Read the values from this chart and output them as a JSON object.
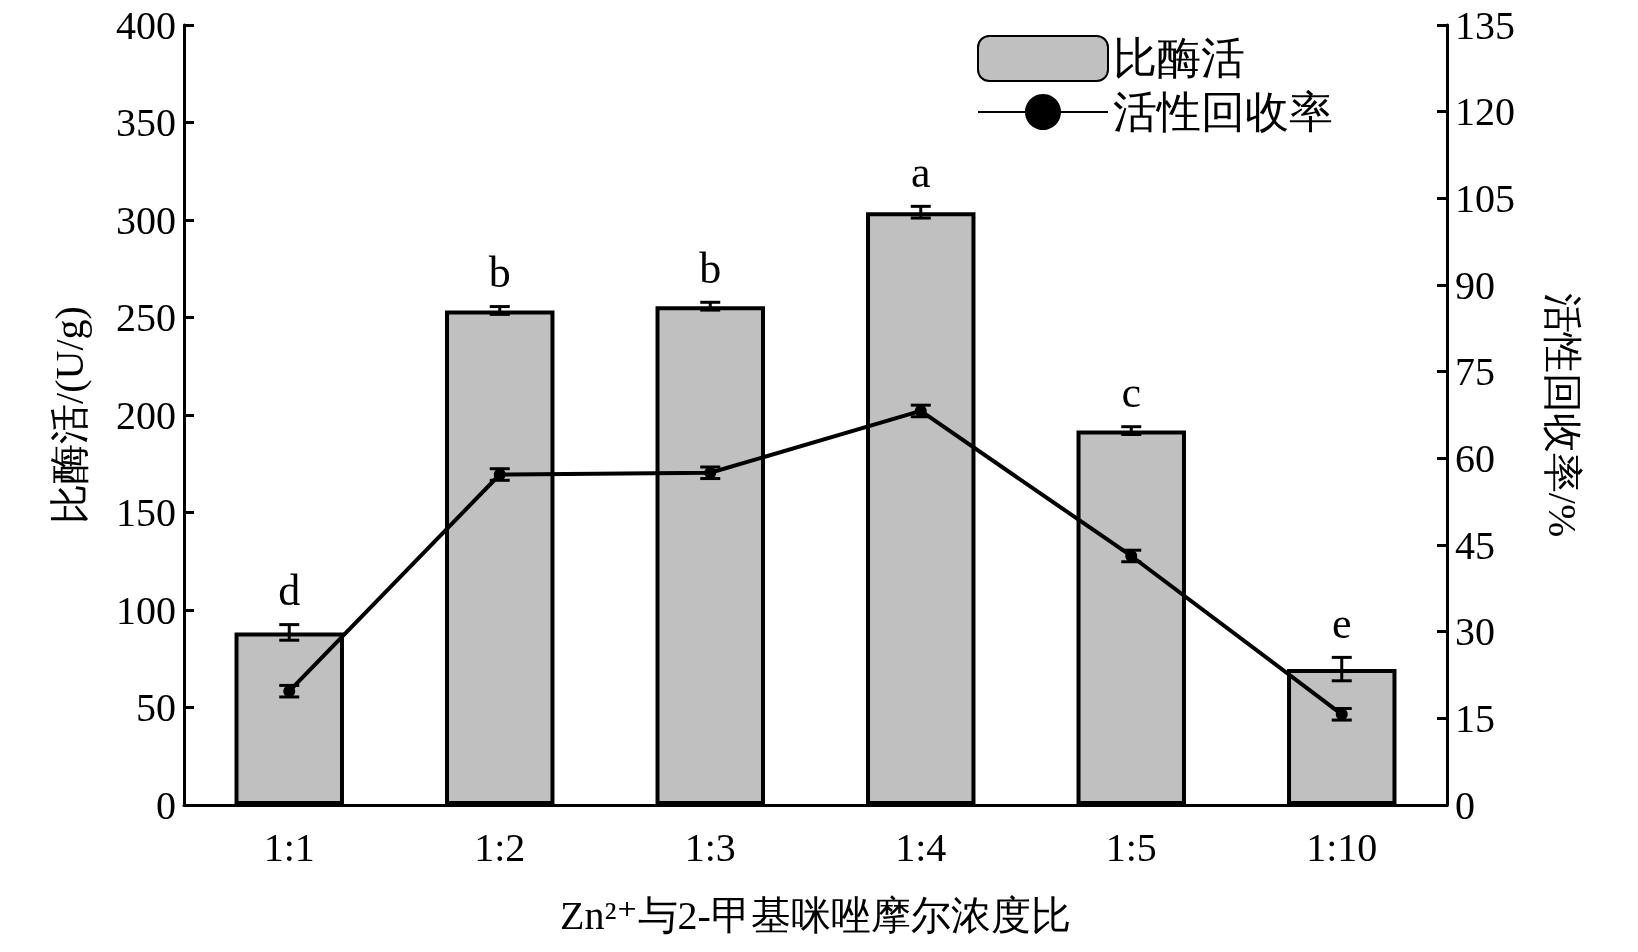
{
  "chart_data": {
    "type": "bar",
    "xlabel": "Zn²⁺与2-甲基咪唑摩尔浓度比",
    "ylabel": "比酶活/(U/g)",
    "y2label": "活性回收率/%",
    "categories": [
      "1:1",
      "1:2",
      "1:3",
      "1:4",
      "1:5",
      "1:10"
    ],
    "series": [
      {
        "name": "比酶活",
        "color": "#c0c0c0",
        "values": [
          88.5,
          253.6,
          255.8,
          304,
          192,
          69.7
        ],
        "errors": [
          4,
          2,
          2,
          3,
          2,
          6
        ]
      },
      {
        "name": "活性回收率",
        "type": "line",
        "axis": "y2",
        "color": "#000000",
        "values": [
          19.7,
          57.2,
          57.5,
          68.2,
          43.1,
          15.7
        ],
        "errors": [
          1,
          1,
          1,
          1,
          1,
          1
        ]
      }
    ],
    "ylim": [
      0,
      400
    ],
    "yticks": [
      0,
      50,
      100,
      150,
      200,
      250,
      300,
      350,
      400
    ],
    "y2lim": [
      0,
      135
    ],
    "y2ticks": [
      0,
      15,
      30,
      45,
      60,
      75,
      90,
      105,
      120,
      135
    ],
    "annotations": [
      {
        "text": "d",
        "x": "1:1",
        "y": 92.5
      },
      {
        "text": "b",
        "x": "1:2",
        "y": 255.6
      },
      {
        "text": "b",
        "x": "1:3",
        "y": 257.8
      },
      {
        "text": "a",
        "x": "1:4",
        "y": 307
      },
      {
        "text": "c",
        "x": "1:5",
        "y": 194
      },
      {
        "text": "e",
        "x": "1:10",
        "y": 75.7
      }
    ],
    "legend": "top right",
    "marker": "circle",
    "line_style": "solid",
    "grid": false
  }
}
